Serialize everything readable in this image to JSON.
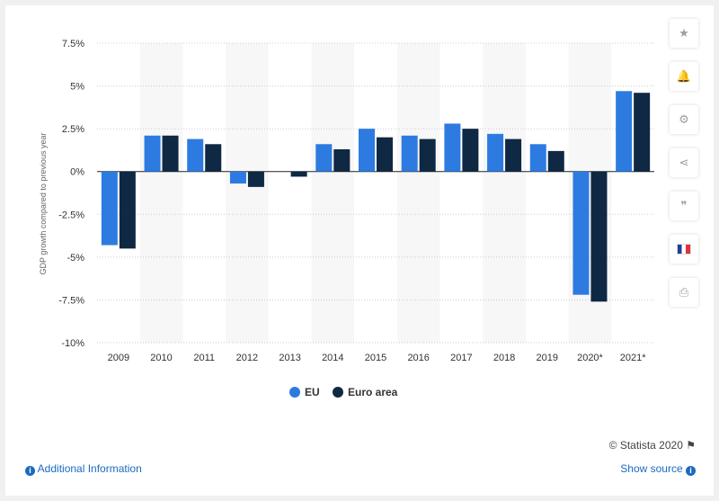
{
  "chart_data": {
    "type": "bar",
    "categories": [
      "2009",
      "2010",
      "2011",
      "2012",
      "2013",
      "2014",
      "2015",
      "2016",
      "2017",
      "2018",
      "2019",
      "2020*",
      "2021*"
    ],
    "series": [
      {
        "name": "EU",
        "color": "#2d7be0",
        "values": [
          -4.3,
          2.1,
          1.9,
          -0.7,
          0.0,
          1.6,
          2.5,
          2.1,
          2.8,
          2.2,
          1.6,
          -7.2,
          4.7
        ]
      },
      {
        "name": "Euro area",
        "color": "#0f2843",
        "values": [
          -4.5,
          2.1,
          1.6,
          -0.9,
          -0.3,
          1.3,
          2.0,
          1.9,
          2.5,
          1.9,
          1.2,
          -7.6,
          4.6
        ]
      }
    ],
    "ylabel": "GDP growth compared to previous year",
    "yticks": [
      "7.5%",
      "5%",
      "2.5%",
      "0%",
      "-2.5%",
      "-5%",
      "-7.5%",
      "-10%"
    ],
    "ylim": [
      -10,
      7.5
    ],
    "grid": true,
    "legend_position": "bottom-center"
  },
  "side_buttons": [
    {
      "name": "star-icon",
      "glyph": "★"
    },
    {
      "name": "bell-icon",
      "glyph": "🔔"
    },
    {
      "name": "gear-icon",
      "glyph": "⚙"
    },
    {
      "name": "share-icon",
      "glyph": "⋖"
    },
    {
      "name": "quote-icon",
      "glyph": "❞"
    },
    {
      "name": "flag-fr-icon",
      "glyph": ""
    },
    {
      "name": "print-icon",
      "glyph": "⎙"
    }
  ],
  "footer": {
    "credit": "© Statista 2020",
    "additional_info": "Additional Information",
    "show_source": "Show source"
  }
}
